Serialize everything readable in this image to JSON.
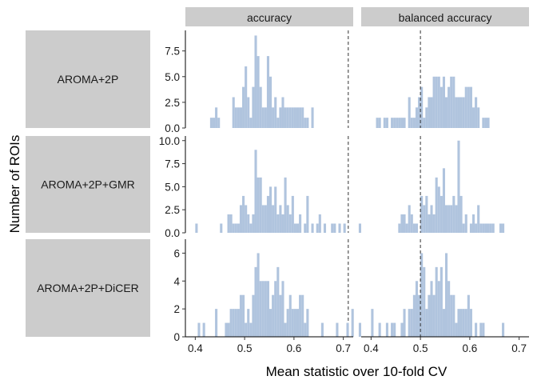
{
  "chart_data": {
    "type": "bar",
    "xlabel": "Mean statistic over 10-fold CV",
    "ylabel": "Number of ROIs",
    "xlim": [
      0.38,
      0.72
    ],
    "bin_width": 0.005,
    "x_ticks": [
      0.4,
      0.5,
      0.6,
      0.7
    ],
    "x_tick_labels": [
      "0.4",
      "0.5",
      "0.6",
      "0.7"
    ],
    "bar_color": "#b0c4de",
    "strip_color": "#cccccc",
    "columns": [
      {
        "label": "accuracy",
        "reference_line": 0.71
      },
      {
        "label": "balanced accuracy",
        "reference_line": 0.5
      }
    ],
    "rows": [
      {
        "label": "AROMA+2P",
        "ylim": [
          0,
          9.5
        ],
        "y_ticks": [
          0,
          2.5,
          5,
          7.5
        ],
        "y_tick_labels": [
          "0.0",
          "2.5",
          "5.0",
          "7.5"
        ],
        "panels": [
          {
            "bins": [
              [
                0.43,
                1
              ],
              [
                0.435,
                1
              ],
              [
                0.44,
                2
              ],
              [
                0.445,
                1
              ],
              [
                0.475,
                3
              ],
              [
                0.48,
                2
              ],
              [
                0.485,
                2
              ],
              [
                0.49,
                2
              ],
              [
                0.495,
                4
              ],
              [
                0.5,
                6
              ],
              [
                0.505,
                3
              ],
              [
                0.51,
                1
              ],
              [
                0.515,
                4
              ],
              [
                0.52,
                9
              ],
              [
                0.525,
                7
              ],
              [
                0.53,
                4
              ],
              [
                0.535,
                2
              ],
              [
                0.54,
                2
              ],
              [
                0.545,
                7
              ],
              [
                0.55,
                5
              ],
              [
                0.555,
                2
              ],
              [
                0.56,
                3
              ],
              [
                0.565,
                1
              ],
              [
                0.57,
                2
              ],
              [
                0.575,
                3
              ],
              [
                0.58,
                2
              ],
              [
                0.585,
                2
              ],
              [
                0.59,
                2
              ],
              [
                0.595,
                2
              ],
              [
                0.6,
                2
              ],
              [
                0.605,
                2
              ],
              [
                0.61,
                2
              ],
              [
                0.615,
                2
              ],
              [
                0.62,
                1
              ],
              [
                0.625,
                1
              ],
              [
                0.635,
                2
              ]
            ]
          },
          {
            "bins": [
              [
                0.41,
                1
              ],
              [
                0.415,
                1
              ],
              [
                0.425,
                1
              ],
              [
                0.43,
                1
              ],
              [
                0.44,
                1
              ],
              [
                0.445,
                1
              ],
              [
                0.45,
                1
              ],
              [
                0.455,
                1
              ],
              [
                0.46,
                1
              ],
              [
                0.465,
                1
              ],
              [
                0.475,
                3
              ],
              [
                0.48,
                1
              ],
              [
                0.485,
                1
              ],
              [
                0.49,
                2
              ],
              [
                0.495,
                3
              ],
              [
                0.5,
                4
              ],
              [
                0.505,
                1
              ],
              [
                0.51,
                2
              ],
              [
                0.515,
                3
              ],
              [
                0.52,
                3
              ],
              [
                0.525,
                5
              ],
              [
                0.53,
                5
              ],
              [
                0.535,
                5
              ],
              [
                0.54,
                4
              ],
              [
                0.545,
                5
              ],
              [
                0.55,
                3
              ],
              [
                0.555,
                4
              ],
              [
                0.56,
                5
              ],
              [
                0.565,
                5
              ],
              [
                0.57,
                3
              ],
              [
                0.575,
                3
              ],
              [
                0.58,
                3
              ],
              [
                0.585,
                3
              ],
              [
                0.59,
                4
              ],
              [
                0.595,
                4
              ],
              [
                0.6,
                4
              ],
              [
                0.605,
                2
              ],
              [
                0.61,
                3
              ],
              [
                0.615,
                2
              ],
              [
                0.625,
                1
              ],
              [
                0.63,
                1
              ],
              [
                0.635,
                1
              ]
            ]
          }
        ]
      },
      {
        "label": "AROMA+2P+GMR",
        "ylim": [
          0,
          10.5
        ],
        "y_ticks": [
          0,
          2.5,
          5,
          7.5,
          10
        ],
        "y_tick_labels": [
          "0.0",
          "2.5",
          "5.0",
          "7.5",
          "10.0"
        ],
        "panels": [
          {
            "bins": [
              [
                0.4,
                1
              ],
              [
                0.45,
                1
              ],
              [
                0.465,
                2
              ],
              [
                0.47,
                2
              ],
              [
                0.475,
                1
              ],
              [
                0.48,
                1
              ],
              [
                0.485,
                1
              ],
              [
                0.49,
                3
              ],
              [
                0.495,
                4
              ],
              [
                0.5,
                3
              ],
              [
                0.505,
                2
              ],
              [
                0.51,
                1
              ],
              [
                0.515,
                2
              ],
              [
                0.52,
                9
              ],
              [
                0.525,
                6
              ],
              [
                0.53,
                6
              ],
              [
                0.535,
                3
              ],
              [
                0.54,
                3
              ],
              [
                0.545,
                4
              ],
              [
                0.55,
                5
              ],
              [
                0.555,
                3
              ],
              [
                0.56,
                5
              ],
              [
                0.565,
                2
              ],
              [
                0.57,
                3
              ],
              [
                0.575,
                2
              ],
              [
                0.58,
                6
              ],
              [
                0.585,
                3
              ],
              [
                0.59,
                2
              ],
              [
                0.595,
                4
              ],
              [
                0.6,
                1
              ],
              [
                0.605,
                1
              ],
              [
                0.61,
                2
              ],
              [
                0.62,
                1
              ],
              [
                0.625,
                4
              ],
              [
                0.635,
                1
              ],
              [
                0.645,
                1
              ],
              [
                0.65,
                2
              ],
              [
                0.66,
                1
              ],
              [
                0.675,
                1
              ],
              [
                0.68,
                1
              ],
              [
                0.69,
                1
              ],
              [
                0.7,
                1
              ]
            ]
          },
          {
            "bins": [
              [
                0.375,
                1
              ],
              [
                0.455,
                1
              ],
              [
                0.46,
                2
              ],
              [
                0.465,
                2
              ],
              [
                0.47,
                1
              ],
              [
                0.475,
                3
              ],
              [
                0.48,
                2
              ],
              [
                0.485,
                1
              ],
              [
                0.49,
                1
              ],
              [
                0.5,
                4
              ],
              [
                0.505,
                3
              ],
              [
                0.51,
                4
              ],
              [
                0.515,
                2
              ],
              [
                0.52,
                3
              ],
              [
                0.525,
                2
              ],
              [
                0.53,
                6
              ],
              [
                0.535,
                5
              ],
              [
                0.54,
                4
              ],
              [
                0.545,
                7
              ],
              [
                0.55,
                3
              ],
              [
                0.555,
                3
              ],
              [
                0.56,
                3
              ],
              [
                0.565,
                4
              ],
              [
                0.57,
                3
              ],
              [
                0.575,
                10
              ],
              [
                0.58,
                4
              ],
              [
                0.585,
                1
              ],
              [
                0.59,
                2
              ],
              [
                0.6,
                1
              ],
              [
                0.605,
                2
              ],
              [
                0.61,
                1
              ],
              [
                0.615,
                3
              ],
              [
                0.62,
                1
              ],
              [
                0.625,
                1
              ],
              [
                0.63,
                1
              ],
              [
                0.635,
                1
              ],
              [
                0.64,
                1
              ],
              [
                0.645,
                1
              ],
              [
                0.66,
                1
              ],
              [
                0.665,
                1
              ]
            ]
          }
        ]
      },
      {
        "label": "AROMA+2P+DiCER",
        "ylim": [
          0,
          7
        ],
        "y_ticks": [
          0,
          2,
          4,
          6
        ],
        "y_tick_labels": [
          "0",
          "2",
          "4",
          "6"
        ],
        "panels": [
          {
            "bins": [
              [
                0.405,
                1
              ],
              [
                0.415,
                1
              ],
              [
                0.44,
                2
              ],
              [
                0.46,
                1
              ],
              [
                0.465,
                1
              ],
              [
                0.47,
                2
              ],
              [
                0.475,
                2
              ],
              [
                0.48,
                2
              ],
              [
                0.485,
                2
              ],
              [
                0.49,
                3
              ],
              [
                0.495,
                3
              ],
              [
                0.5,
                1
              ],
              [
                0.505,
                2
              ],
              [
                0.51,
                1
              ],
              [
                0.515,
                3
              ],
              [
                0.52,
                5
              ],
              [
                0.525,
                6
              ],
              [
                0.53,
                4
              ],
              [
                0.535,
                4
              ],
              [
                0.54,
                4
              ],
              [
                0.545,
                4
              ],
              [
                0.55,
                2
              ],
              [
                0.555,
                3
              ],
              [
                0.56,
                4
              ],
              [
                0.565,
                5
              ],
              [
                0.57,
                3
              ],
              [
                0.575,
                4
              ],
              [
                0.58,
                1
              ],
              [
                0.585,
                2
              ],
              [
                0.59,
                3
              ],
              [
                0.595,
                2
              ],
              [
                0.6,
                2
              ],
              [
                0.605,
                2
              ],
              [
                0.61,
                3
              ],
              [
                0.615,
                3
              ],
              [
                0.62,
                1
              ],
              [
                0.625,
                2
              ],
              [
                0.655,
                1
              ],
              [
                0.685,
                1
              ]
            ]
          },
          {
            "bins": [
              [
                0.35,
                1
              ],
              [
                0.36,
                2
              ],
              [
                0.375,
                1
              ],
              [
                0.4,
                2
              ],
              [
                0.415,
                1
              ],
              [
                0.43,
                1
              ],
              [
                0.44,
                1
              ],
              [
                0.445,
                1
              ],
              [
                0.46,
                1
              ],
              [
                0.465,
                2
              ],
              [
                0.475,
                2
              ],
              [
                0.48,
                2
              ],
              [
                0.485,
                3
              ],
              [
                0.49,
                4
              ],
              [
                0.495,
                3
              ],
              [
                0.5,
                6
              ],
              [
                0.505,
                5
              ],
              [
                0.51,
                2
              ],
              [
                0.515,
                3
              ],
              [
                0.52,
                4
              ],
              [
                0.525,
                3
              ],
              [
                0.53,
                5
              ],
              [
                0.535,
                4
              ],
              [
                0.54,
                5
              ],
              [
                0.545,
                2
              ],
              [
                0.55,
                6
              ],
              [
                0.555,
                4
              ],
              [
                0.56,
                3
              ],
              [
                0.565,
                3
              ],
              [
                0.57,
                1
              ],
              [
                0.575,
                2
              ],
              [
                0.58,
                2
              ],
              [
                0.585,
                2
              ],
              [
                0.59,
                2
              ],
              [
                0.595,
                3
              ],
              [
                0.6,
                2
              ],
              [
                0.61,
                1
              ],
              [
                0.62,
                1
              ],
              [
                0.625,
                1
              ],
              [
                0.665,
                1
              ]
            ]
          }
        ]
      }
    ]
  }
}
